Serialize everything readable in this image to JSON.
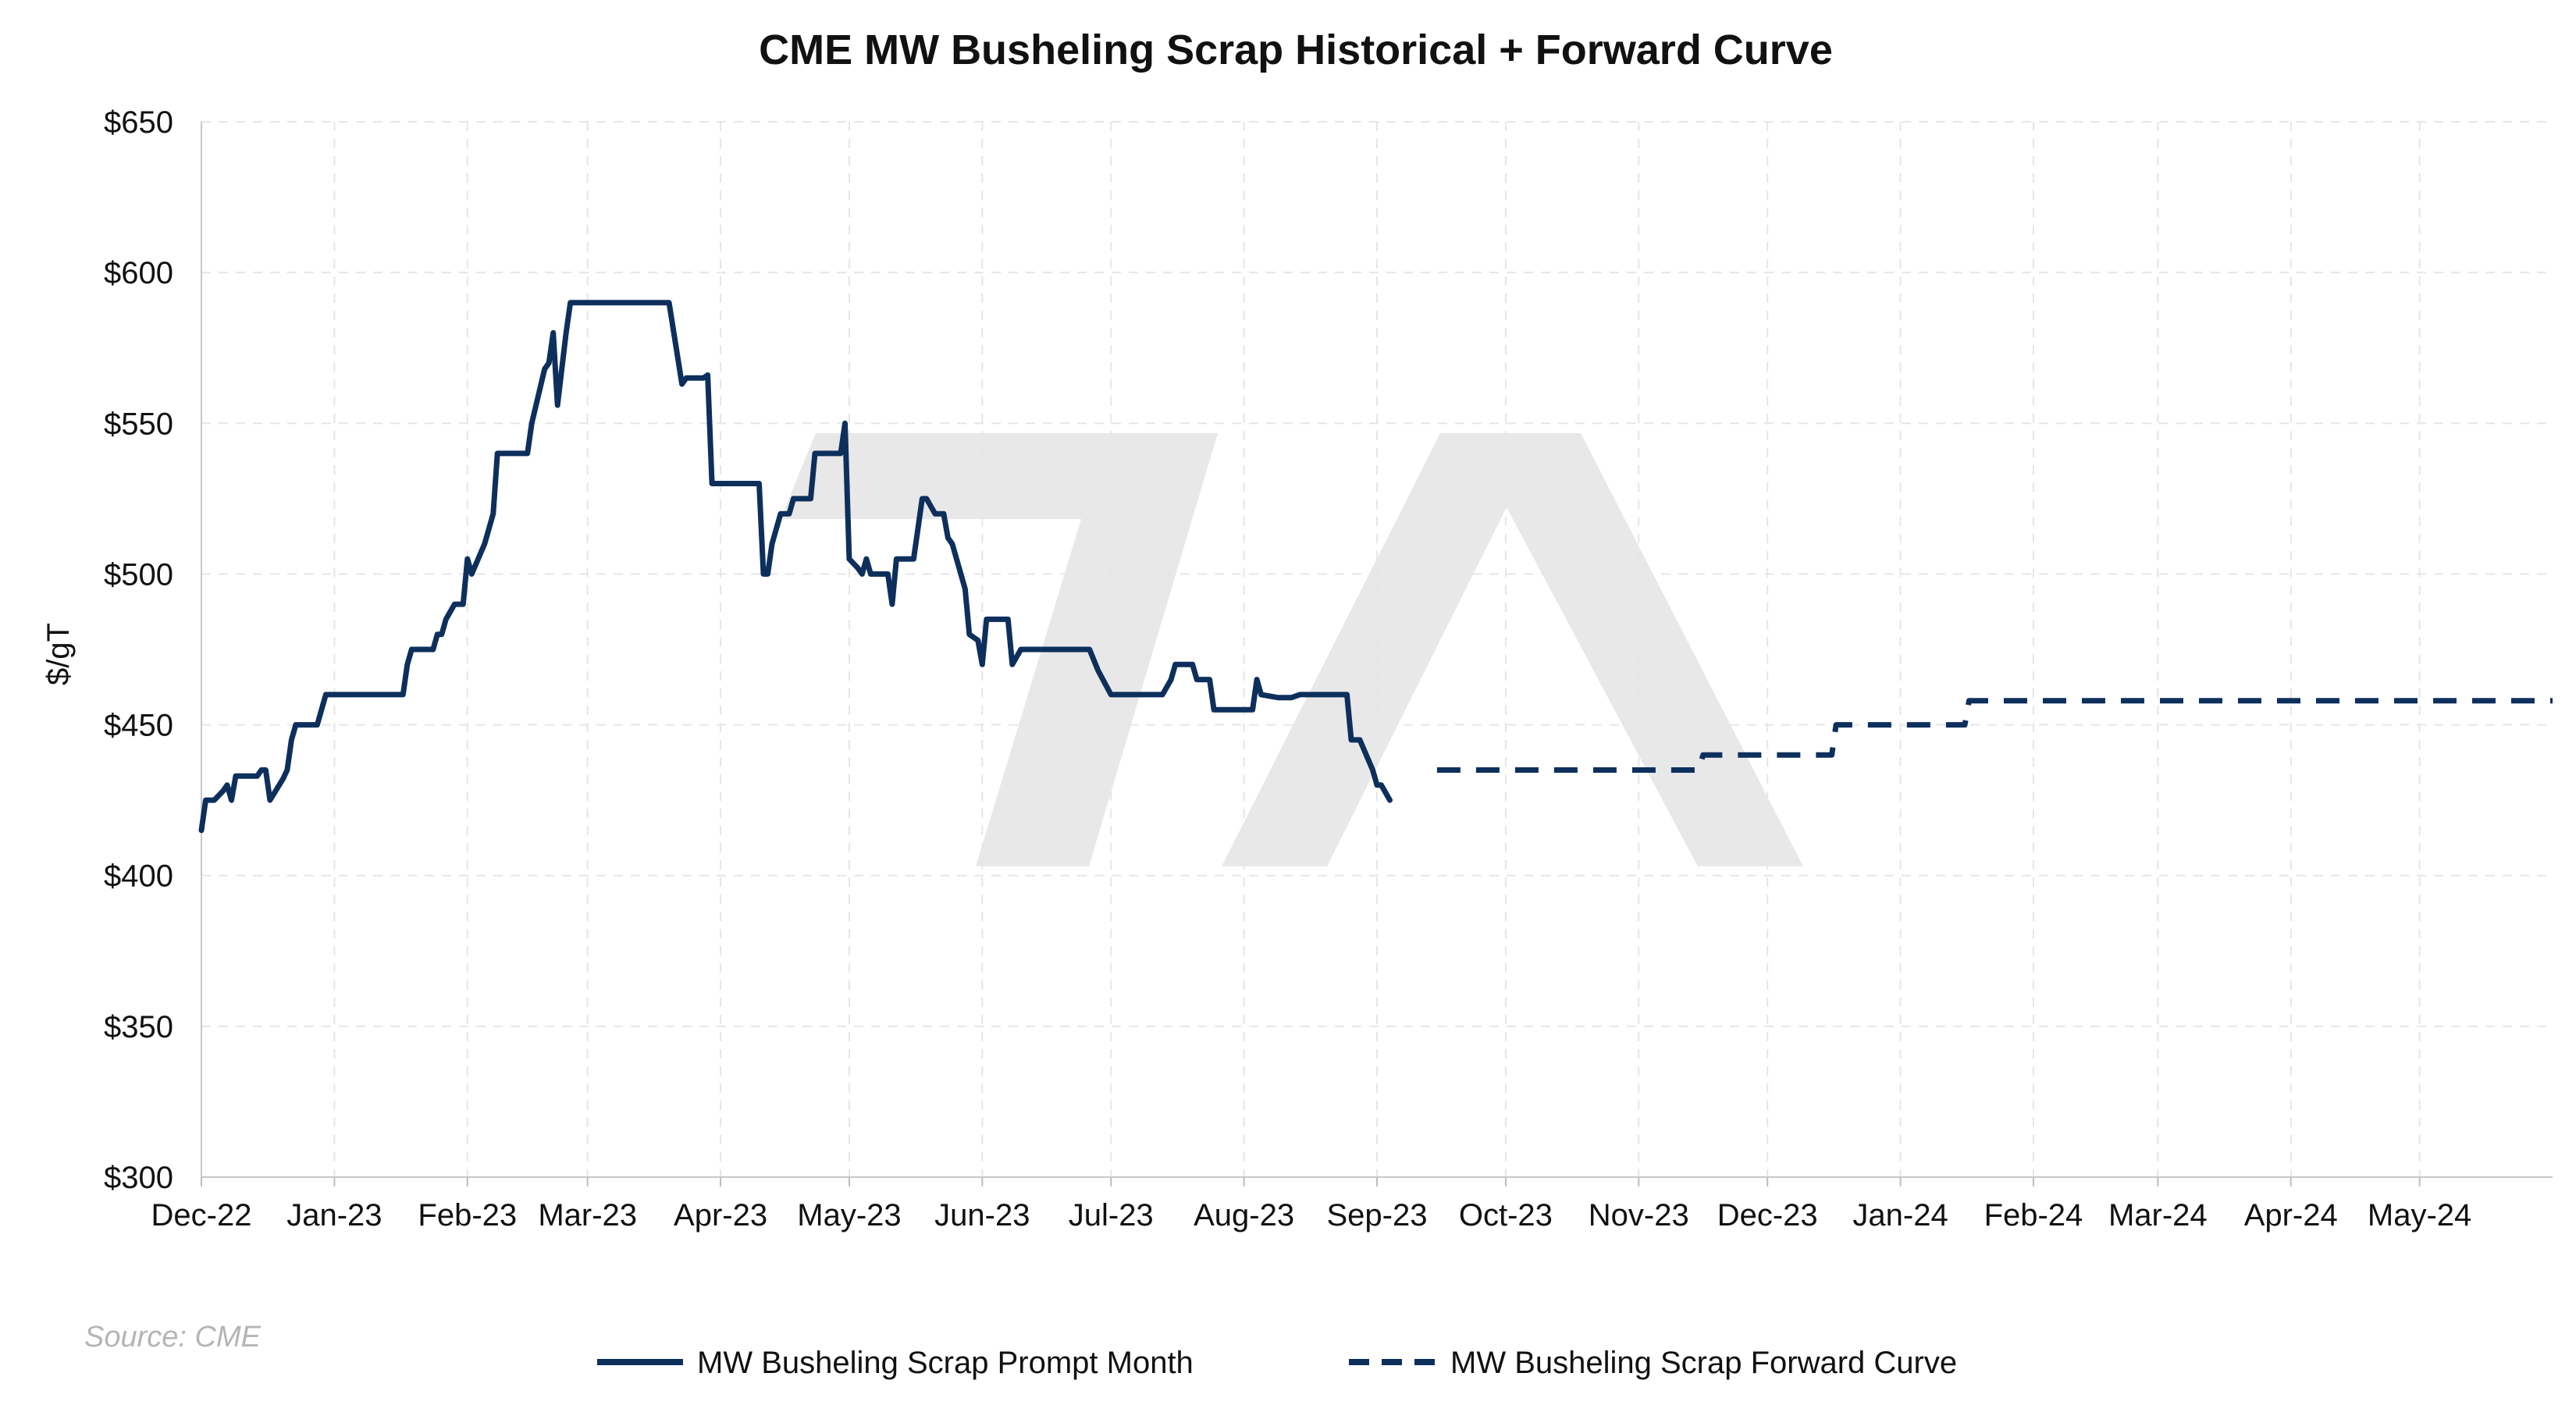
{
  "chart_data": {
    "type": "line",
    "title": "CME MW Busheling Scrap Historical + Forward Curve",
    "ylabel": "$/gT",
    "xlabel": "",
    "ylim": [
      300,
      650
    ],
    "yticks": [
      300,
      350,
      400,
      450,
      500,
      550,
      600,
      650
    ],
    "ytick_labels": [
      "$300",
      "$350",
      "$400",
      "$450",
      "$500",
      "$550",
      "$600",
      "$650"
    ],
    "xlim": [
      "2022-12-01",
      "2024-06-01"
    ],
    "xticks": [
      "2022-12-01",
      "2023-01-01",
      "2023-02-01",
      "2023-03-01",
      "2023-04-01",
      "2023-05-01",
      "2023-06-01",
      "2023-07-01",
      "2023-08-01",
      "2023-09-01",
      "2023-10-01",
      "2023-11-01",
      "2023-12-01",
      "2024-01-01",
      "2024-02-01",
      "2024-03-01",
      "2024-04-01",
      "2024-05-01"
    ],
    "xtick_labels": [
      "Dec-22",
      "Jan-23",
      "Feb-23",
      "Mar-23",
      "Apr-23",
      "May-23",
      "Jun-23",
      "Jul-23",
      "Aug-23",
      "Sep-23",
      "Oct-23",
      "Nov-23",
      "Dec-23",
      "Jan-24",
      "Feb-24",
      "Mar-24",
      "Apr-24",
      "May-24"
    ],
    "grid": true,
    "legend_position": "bottom",
    "source": "Source: CME",
    "series": [
      {
        "name": "MW Busheling Scrap Prompt Month",
        "style": "solid",
        "color": "#0d2f5c",
        "points": [
          [
            "2022-12-01",
            415
          ],
          [
            "2022-12-02",
            425
          ],
          [
            "2022-12-04",
            425
          ],
          [
            "2022-12-06",
            428
          ],
          [
            "2022-12-07",
            430
          ],
          [
            "2022-12-08",
            425
          ],
          [
            "2022-12-09",
            433
          ],
          [
            "2022-12-13",
            433
          ],
          [
            "2022-12-14",
            433
          ],
          [
            "2022-12-15",
            435
          ],
          [
            "2022-12-16",
            435
          ],
          [
            "2022-12-17",
            425
          ],
          [
            "2022-12-20",
            432
          ],
          [
            "2022-12-21",
            435
          ],
          [
            "2022-12-22",
            445
          ],
          [
            "2022-12-23",
            450
          ],
          [
            "2022-12-27",
            450
          ],
          [
            "2022-12-28",
            450
          ],
          [
            "2022-12-30",
            460
          ],
          [
            "2023-01-17",
            460
          ],
          [
            "2023-01-18",
            470
          ],
          [
            "2023-01-19",
            475
          ],
          [
            "2023-01-24",
            475
          ],
          [
            "2023-01-25",
            480
          ],
          [
            "2023-01-26",
            480
          ],
          [
            "2023-01-27",
            485
          ],
          [
            "2023-01-29",
            490
          ],
          [
            "2023-01-31",
            490
          ],
          [
            "2023-02-01",
            505
          ],
          [
            "2023-02-02",
            500
          ],
          [
            "2023-02-05",
            510
          ],
          [
            "2023-02-07",
            520
          ],
          [
            "2023-02-08",
            540
          ],
          [
            "2023-02-15",
            540
          ],
          [
            "2023-02-16",
            550
          ],
          [
            "2023-02-19",
            568
          ],
          [
            "2023-02-20",
            570
          ],
          [
            "2023-02-21",
            580
          ],
          [
            "2023-02-22",
            556
          ],
          [
            "2023-02-24",
            580
          ],
          [
            "2023-02-25",
            590
          ],
          [
            "2023-03-20",
            590
          ],
          [
            "2023-03-23",
            563
          ],
          [
            "2023-03-24",
            565
          ],
          [
            "2023-03-28",
            565
          ],
          [
            "2023-03-29",
            566
          ],
          [
            "2023-03-30",
            530
          ],
          [
            "2023-04-10",
            530
          ],
          [
            "2023-04-11",
            500
          ],
          [
            "2023-04-12",
            500
          ],
          [
            "2023-04-13",
            510
          ],
          [
            "2023-04-15",
            520
          ],
          [
            "2023-04-17",
            520
          ],
          [
            "2023-04-18",
            525
          ],
          [
            "2023-04-22",
            525
          ],
          [
            "2023-04-23",
            540
          ],
          [
            "2023-04-29",
            540
          ],
          [
            "2023-04-30",
            550
          ],
          [
            "2023-05-01",
            505
          ],
          [
            "2023-05-03",
            502
          ],
          [
            "2023-05-04",
            500
          ],
          [
            "2023-05-05",
            505
          ],
          [
            "2023-05-06",
            500
          ],
          [
            "2023-05-10",
            500
          ],
          [
            "2023-05-11",
            490
          ],
          [
            "2023-05-12",
            505
          ],
          [
            "2023-05-16",
            505
          ],
          [
            "2023-05-17",
            515
          ],
          [
            "2023-05-18",
            525
          ],
          [
            "2023-05-19",
            525
          ],
          [
            "2023-05-21",
            520
          ],
          [
            "2023-05-23",
            520
          ],
          [
            "2023-05-24",
            512
          ],
          [
            "2023-05-25",
            510
          ],
          [
            "2023-05-28",
            495
          ],
          [
            "2023-05-29",
            480
          ],
          [
            "2023-05-31",
            478
          ],
          [
            "2023-06-01",
            470
          ],
          [
            "2023-06-02",
            485
          ],
          [
            "2023-06-07",
            485
          ],
          [
            "2023-06-08",
            470
          ],
          [
            "2023-06-10",
            475
          ],
          [
            "2023-06-26",
            475
          ],
          [
            "2023-06-28",
            468
          ],
          [
            "2023-07-01",
            460
          ],
          [
            "2023-07-13",
            460
          ],
          [
            "2023-07-15",
            465
          ],
          [
            "2023-07-16",
            470
          ],
          [
            "2023-07-20",
            470
          ],
          [
            "2023-07-21",
            465
          ],
          [
            "2023-07-24",
            465
          ],
          [
            "2023-07-25",
            455
          ],
          [
            "2023-08-03",
            455
          ],
          [
            "2023-08-04",
            465
          ],
          [
            "2023-08-05",
            460
          ],
          [
            "2023-08-09",
            459
          ],
          [
            "2023-08-12",
            459
          ],
          [
            "2023-08-14",
            460
          ],
          [
            "2023-08-25",
            460
          ],
          [
            "2023-08-26",
            445
          ],
          [
            "2023-08-28",
            445
          ],
          [
            "2023-08-31",
            435
          ],
          [
            "2023-09-01",
            430
          ],
          [
            "2023-09-02",
            430
          ],
          [
            "2023-09-04",
            425
          ]
        ]
      },
      {
        "name": "MW Busheling Scrap Forward Curve",
        "style": "dashed",
        "color": "#0d2f5c",
        "points": [
          [
            "2023-09-15",
            435
          ],
          [
            "2023-11-15",
            435
          ],
          [
            "2023-11-16",
            440
          ],
          [
            "2023-12-16",
            440
          ],
          [
            "2023-12-17",
            450
          ],
          [
            "2024-01-16",
            450
          ],
          [
            "2024-01-17",
            458
          ],
          [
            "2024-06-01",
            458
          ]
        ]
      }
    ]
  }
}
